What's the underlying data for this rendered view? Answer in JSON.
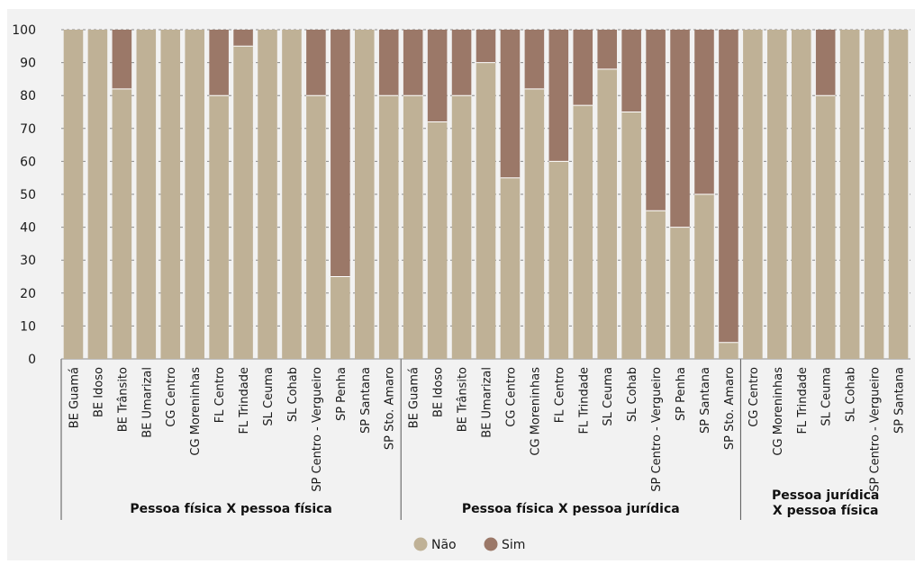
{
  "chart_data": {
    "type": "bar",
    "stacked": true,
    "ylim": [
      0,
      100
    ],
    "yticks": [
      0,
      10,
      20,
      30,
      40,
      50,
      60,
      70,
      80,
      90,
      100
    ],
    "grid": true,
    "legend_position": "bottom",
    "series": [
      {
        "name": "Não",
        "color": "#bfb196"
      },
      {
        "name": "Sim",
        "color": "#9b7868"
      }
    ],
    "groups": [
      {
        "label": "Pessoa física X  pessoa física",
        "categories": [
          "BE Guamá",
          "BE Idoso",
          "BE Trânsito",
          "BE Umarizal",
          "CG Centro",
          "CG Moreninhas",
          "FL Centro",
          "FL Trindade",
          "SL Ceuma",
          "SL Cohab",
          "SP Centro - Vergueiro",
          "SP Penha",
          "SP Santana",
          "SP Sto. Amaro"
        ],
        "nao": [
          100,
          100,
          82,
          100,
          100,
          100,
          80,
          95,
          100,
          100,
          80,
          25,
          100,
          80
        ],
        "sim": [
          0,
          0,
          18,
          0,
          0,
          0,
          20,
          5,
          0,
          0,
          20,
          75,
          0,
          20
        ]
      },
      {
        "label": "Pessoa física X  pessoa jurídica",
        "categories": [
          "BE Guamá",
          "BE Idoso",
          "BE Trânsito",
          "BE Umarizal",
          "CG Centro",
          "CG Moreninhas",
          "FL Centro",
          "FL Trindade",
          "SL Ceuma",
          "SL Cohab",
          "SP Centro - Vergueiro",
          "SP Penha",
          "SP Santana",
          "SP Sto. Amaro"
        ],
        "nao": [
          80,
          72,
          80,
          90,
          55,
          82,
          60,
          77,
          88,
          75,
          45,
          40,
          50,
          5
        ],
        "sim": [
          20,
          28,
          20,
          10,
          45,
          18,
          40,
          23,
          12,
          25,
          55,
          60,
          50,
          95
        ]
      },
      {
        "label": "Pessoa jurídica X  pessoa física",
        "label_lines": [
          "Pessoa jurídica",
          "X  pessoa física"
        ],
        "categories": [
          "CG Centro",
          "CG Moreninhas",
          "FL Trindade",
          "SL Ceuma",
          "SL Cohab",
          "SP Centro - Vergueiro",
          "SP Santana"
        ],
        "nao": [
          100,
          100,
          100,
          80,
          100,
          100,
          100
        ],
        "sim": [
          0,
          0,
          0,
          20,
          0,
          0,
          0
        ]
      }
    ]
  }
}
